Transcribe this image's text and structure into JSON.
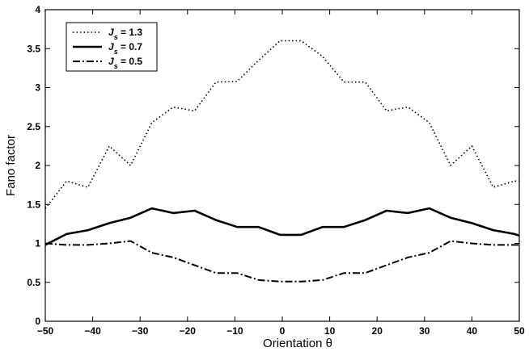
{
  "chart_data": {
    "type": "line",
    "xlabel": "Orientation θ",
    "ylabel": "Fano factor",
    "xlim": [
      -50,
      50
    ],
    "ylim": [
      0,
      4
    ],
    "xticks": [
      -50,
      -40,
      -30,
      -20,
      -10,
      0,
      10,
      20,
      30,
      40,
      50
    ],
    "yticks": [
      0,
      0.5,
      1,
      1.5,
      2,
      2.5,
      3,
      3.5,
      4
    ],
    "grid": false,
    "legend_position": "top-left",
    "x": [
      -50,
      -45.5,
      -41,
      -36.5,
      -32,
      -27.5,
      -23,
      -18.5,
      -14,
      -9.5,
      -5,
      -0.5,
      4,
      8.5,
      13,
      17.5,
      22,
      26.5,
      31,
      35.5,
      40,
      44.5,
      49,
      50
    ],
    "series": [
      {
        "name": "J_s = 1.3",
        "legend_main": "J",
        "legend_sub": "s",
        "legend_rest": " = 1.3",
        "style": "dotted",
        "values": [
          1.45,
          1.8,
          1.72,
          2.25,
          2.0,
          2.55,
          2.75,
          2.7,
          3.07,
          3.08,
          3.35,
          3.6,
          3.6,
          3.4,
          3.07,
          3.07,
          2.7,
          2.75,
          2.55,
          2.0,
          2.25,
          1.72,
          1.8,
          1.8
        ]
      },
      {
        "name": "J_s = 0.7",
        "legend_main": "J",
        "legend_sub": "s",
        "legend_rest": " = 0.7",
        "style": "solid",
        "values": [
          0.98,
          1.12,
          1.17,
          1.26,
          1.33,
          1.45,
          1.39,
          1.42,
          1.3,
          1.21,
          1.21,
          1.11,
          1.11,
          1.21,
          1.21,
          1.3,
          1.42,
          1.39,
          1.45,
          1.33,
          1.26,
          1.17,
          1.12,
          1.1
        ]
      },
      {
        "name": "J_s = 0.5",
        "legend_main": "J",
        "legend_sub": "s",
        "legend_rest": " = 0.5",
        "style": "dashdot",
        "values": [
          1.0,
          0.98,
          0.98,
          1.0,
          1.03,
          0.88,
          0.82,
          0.72,
          0.62,
          0.62,
          0.53,
          0.51,
          0.51,
          0.53,
          0.62,
          0.62,
          0.72,
          0.82,
          0.88,
          1.03,
          1.0,
          0.98,
          0.98,
          0.98
        ]
      }
    ]
  }
}
